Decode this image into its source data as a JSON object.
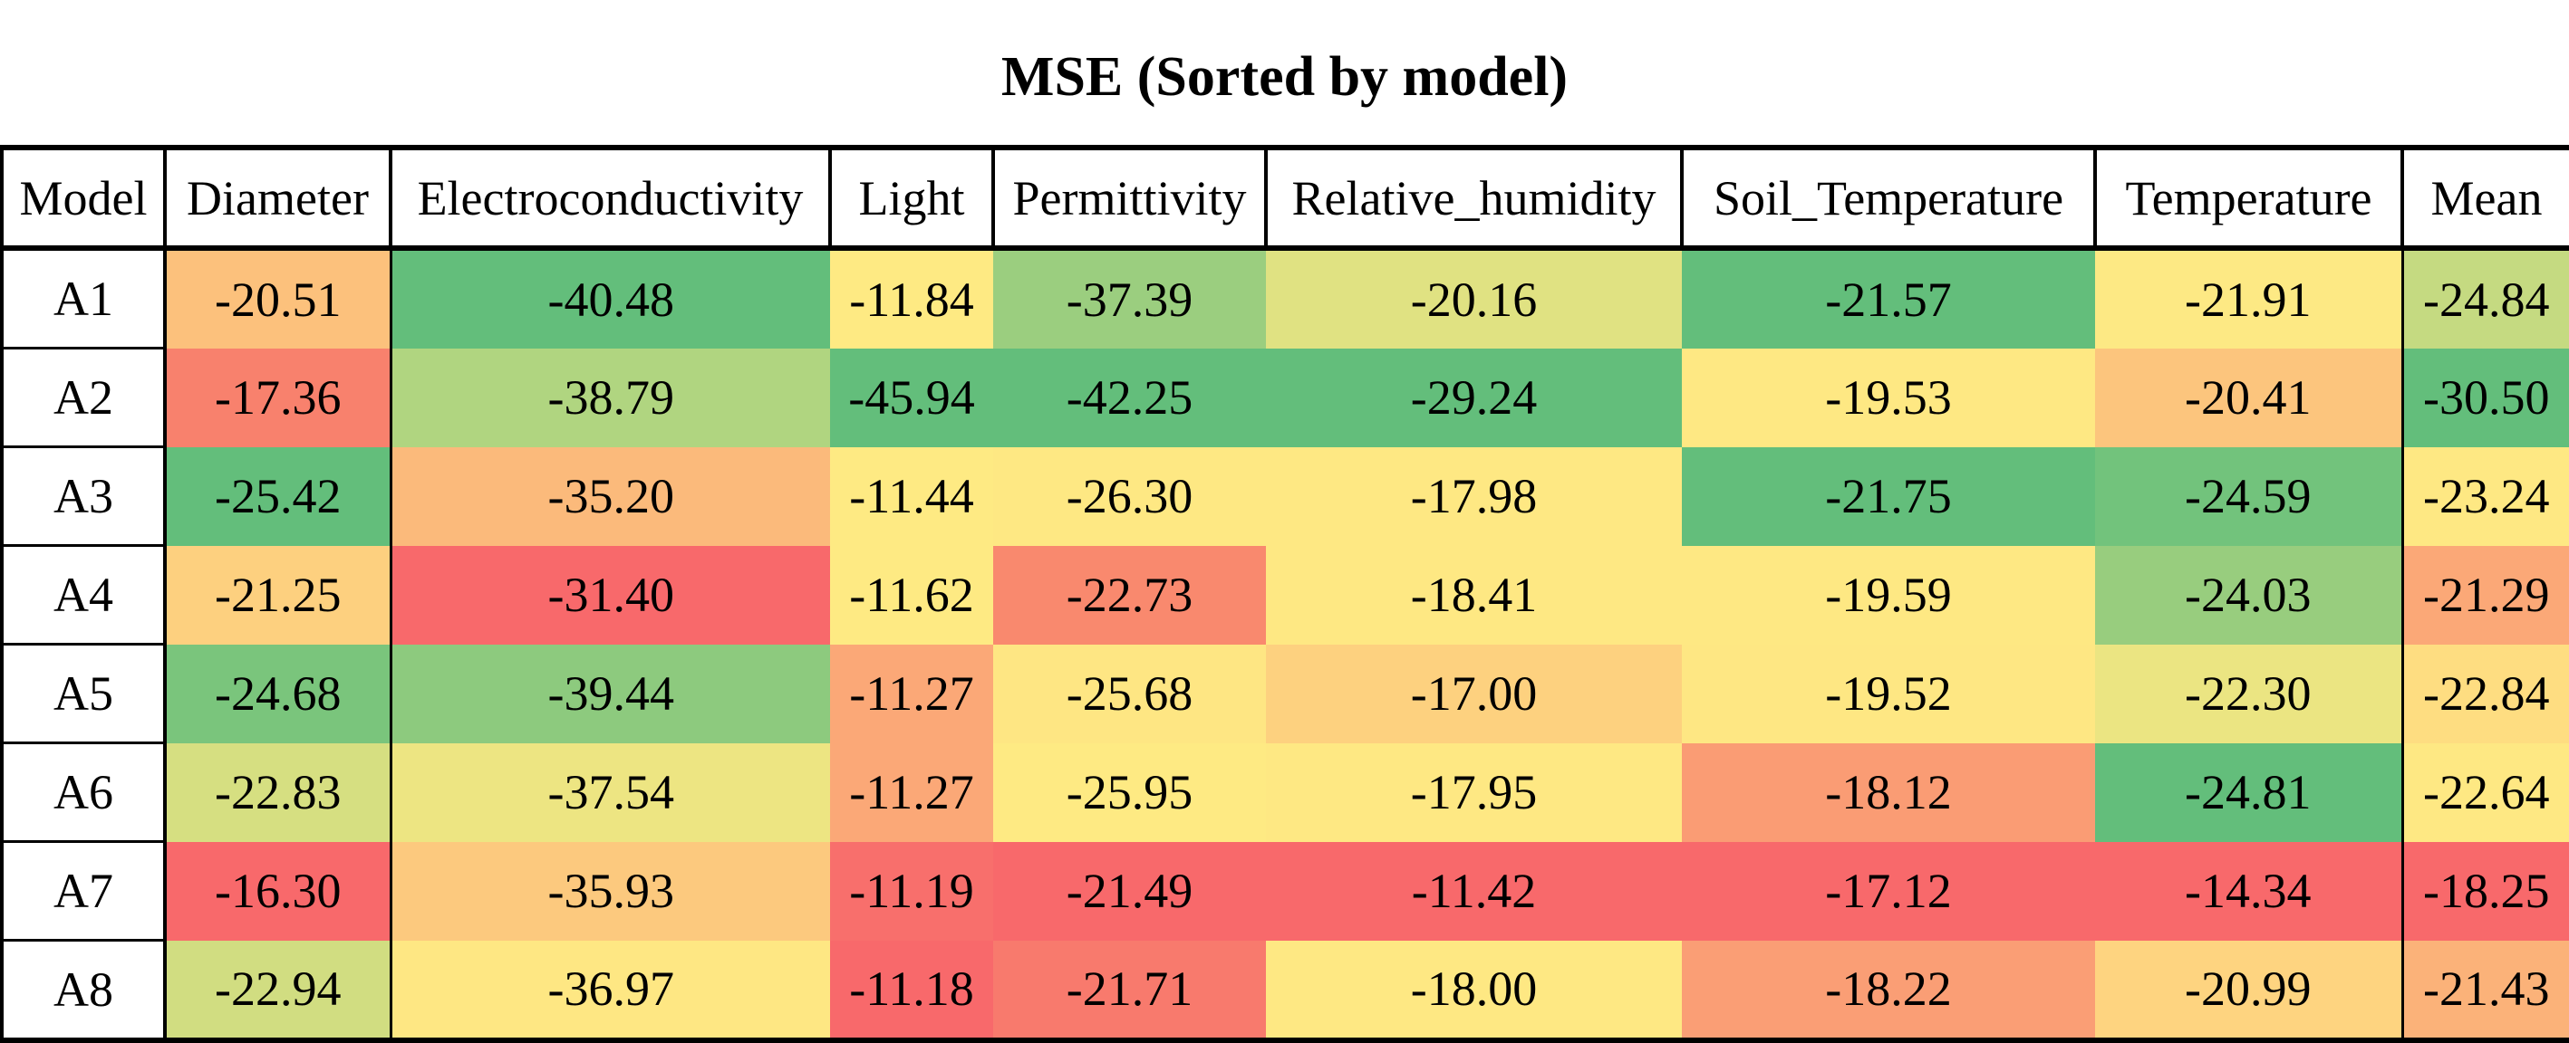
{
  "chart_data": {
    "type": "table",
    "title": "MSE (Sorted by model)",
    "columns": [
      "Model",
      "Diameter",
      "Electroconductivity",
      "Light",
      "Permittivity",
      "Relative_humidity",
      "Soil_Temperature",
      "Temperature",
      "Mean"
    ],
    "rows": [
      {
        "model": "A1",
        "values": [
          "-20.51",
          "-40.48",
          "-11.84",
          "-37.39",
          "-20.16",
          "-21.57",
          "-21.91",
          "-24.84"
        ],
        "colors": [
          "#fcc17c",
          "#63be7b",
          "#feea83",
          "#9bce7f",
          "#e0e282",
          "#63be7b",
          "#fde984",
          "#c5da81"
        ]
      },
      {
        "model": "A2",
        "values": [
          "-17.36",
          "-38.79",
          "-45.94",
          "-42.25",
          "-29.24",
          "-19.53",
          "-20.41",
          "-30.50"
        ],
        "colors": [
          "#f8816d",
          "#b0d580",
          "#63be7b",
          "#63be7b",
          "#63be7b",
          "#fee883",
          "#fcc57d",
          "#63be7b"
        ]
      },
      {
        "model": "A3",
        "values": [
          "-25.42",
          "-35.20",
          "-11.44",
          "-26.30",
          "-17.98",
          "-21.75",
          "-24.59",
          "-23.24"
        ],
        "colors": [
          "#63be7b",
          "#fbba7b",
          "#feea83",
          "#fee883",
          "#fee883",
          "#63be7b",
          "#72c37c",
          "#fee883"
        ]
      },
      {
        "model": "A4",
        "values": [
          "-21.25",
          "-31.40",
          "-11.62",
          "-22.73",
          "-18.41",
          "-19.59",
          "-24.03",
          "-21.29"
        ],
        "colors": [
          "#fdd07f",
          "#f8696b",
          "#feea83",
          "#f9896e",
          "#fee883",
          "#fee883",
          "#98cd7e",
          "#fba877"
        ]
      },
      {
        "model": "A5",
        "values": [
          "-24.68",
          "-39.44",
          "-11.27",
          "-25.68",
          "-17.00",
          "-19.52",
          "-22.30",
          "-22.84"
        ],
        "colors": [
          "#7ac57c",
          "#8dca7e",
          "#fba877",
          "#fee683",
          "#fdd17f",
          "#fee783",
          "#ebe582",
          "#fedd81"
        ]
      },
      {
        "model": "A6",
        "values": [
          "-22.83",
          "-37.54",
          "-11.27",
          "-25.95",
          "-17.95",
          "-18.12",
          "-24.81",
          "-22.64"
        ],
        "colors": [
          "#d6df81",
          "#ede582",
          "#fba877",
          "#feea83",
          "#fee883",
          "#fa9c74",
          "#63be7b",
          "#fee883"
        ]
      },
      {
        "model": "A7",
        "values": [
          "-16.30",
          "-35.93",
          "-11.19",
          "-21.49",
          "-11.42",
          "-17.12",
          "-14.34",
          "-18.25"
        ],
        "colors": [
          "#f8696b",
          "#fcc97e",
          "#f86f6c",
          "#f8696b",
          "#f8696b",
          "#f8696b",
          "#f8696b",
          "#f8696b"
        ]
      },
      {
        "model": "A8",
        "values": [
          "-22.94",
          "-36.97",
          "-11.18",
          "-21.71",
          "-18.00",
          "-18.22",
          "-20.99",
          "-21.43"
        ],
        "colors": [
          "#d1dd81",
          "#fee783",
          "#f8696b",
          "#f87a6d",
          "#fee883",
          "#fa9e75",
          "#fed480",
          "#fbb279"
        ]
      }
    ]
  }
}
